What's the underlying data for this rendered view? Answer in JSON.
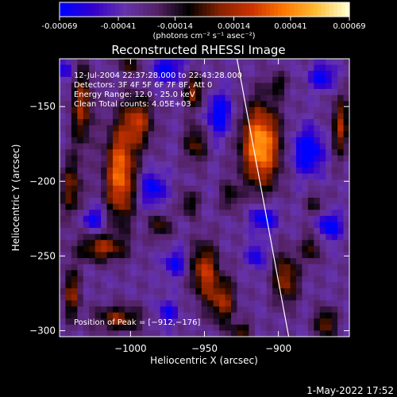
{
  "chart_data": {
    "type": "heatmap",
    "title": "Reconstructed RHESSI Image",
    "xlabel": "Heliocentric X (arcsec)",
    "ylabel": "Heliocentric Y (arcsec)",
    "xlim": [
      -1048,
      -852
    ],
    "ylim": [
      -304,
      -118
    ],
    "x_ticks": [
      -1000,
      -950,
      -900
    ],
    "x_tick_labels": [
      "−1000",
      "−950",
      "−900"
    ],
    "y_ticks": [
      -150,
      -200,
      -250,
      -300
    ],
    "y_tick_labels": [
      "−150",
      "−200",
      "−250",
      "−300"
    ],
    "colorbar": {
      "min": -0.00069,
      "max": 0.00069,
      "tick_values": [
        -0.00069,
        -0.00041,
        -0.00014,
        0.00014,
        0.00041,
        0.00069
      ],
      "tick_labels": [
        "-0.00069",
        "-0.00041",
        "-0.00014",
        "0.00014",
        "0.00041",
        "0.00069"
      ],
      "units_label": "(photons cm⁻² s⁻¹ asec⁻²)"
    },
    "info_lines": [
      "12-Jul-2004 22:37:28.000 to 22:43:28.000",
      "Detectors: 3F 4F 5F 6F 7F 8F, Att 0",
      "Energy Range: 12.0 - 25.0 keV",
      "Clean     Total counts: 4.05E+03"
    ],
    "peak_label": "Position of Peak = [−912,−176]",
    "peak": {
      "x": -912,
      "y": -176
    },
    "limb_line": {
      "x_top": -928,
      "y_top": -118,
      "x_bottom": -893,
      "y_bottom": -304,
      "color": "#ffffff"
    },
    "colormap": [
      "#0000ff",
      "#3300cc",
      "#6633aa",
      "#552266",
      "#000000",
      "#882200",
      "#cc3300",
      "#ff7700",
      "#ffbb33",
      "#ffffcc"
    ],
    "grid": false,
    "sources": [
      {
        "x": -912,
        "y": -176,
        "sx": 9,
        "sy": 19,
        "amp": 1.0
      },
      {
        "x": -1007,
        "y": -195,
        "sx": 7,
        "sy": 22,
        "amp": 0.85
      },
      {
        "x": -995,
        "y": -160,
        "sx": 7,
        "sy": 12,
        "amp": 0.6
      },
      {
        "x": -1033,
        "y": -150,
        "sx": 5,
        "sy": 18,
        "amp": 0.55
      },
      {
        "x": -1040,
        "y": -205,
        "sx": 5,
        "sy": 14,
        "amp": 0.45
      },
      {
        "x": -957,
        "y": -140,
        "sx": 5,
        "sy": 8,
        "amp": 0.5
      },
      {
        "x": -956,
        "y": -175,
        "sx": 5,
        "sy": 9,
        "amp": 0.45
      },
      {
        "x": -960,
        "y": -215,
        "sx": 4,
        "sy": 6,
        "amp": 0.4
      },
      {
        "x": -933,
        "y": -210,
        "sx": 4,
        "sy": 7,
        "amp": 0.35
      },
      {
        "x": -950,
        "y": -260,
        "sx": 6,
        "sy": 13,
        "amp": 0.65
      },
      {
        "x": -938,
        "y": -280,
        "sx": 6,
        "sy": 11,
        "amp": 0.55
      },
      {
        "x": -1020,
        "y": -245,
        "sx": 11,
        "sy": 6,
        "amp": 0.55
      },
      {
        "x": -1040,
        "y": -275,
        "sx": 4,
        "sy": 12,
        "amp": 0.5
      },
      {
        "x": -1008,
        "y": -292,
        "sx": 11,
        "sy": 6,
        "amp": 0.5
      },
      {
        "x": -980,
        "y": -230,
        "sx": 5,
        "sy": 6,
        "amp": 0.4
      },
      {
        "x": -895,
        "y": -265,
        "sx": 6,
        "sy": 12,
        "amp": 0.55
      },
      {
        "x": -878,
        "y": -245,
        "sx": 4,
        "sy": 7,
        "amp": 0.4
      },
      {
        "x": -868,
        "y": -295,
        "sx": 5,
        "sy": 7,
        "amp": 0.5
      },
      {
        "x": -858,
        "y": -163,
        "sx": 4,
        "sy": 14,
        "amp": 0.55
      },
      {
        "x": -900,
        "y": -135,
        "sx": 5,
        "sy": 5,
        "amp": 0.3
      },
      {
        "x": -875,
        "y": -215,
        "sx": 4,
        "sy": 5,
        "amp": 0.3
      },
      {
        "x": -1000,
        "y": -122,
        "sx": 6,
        "sy": 4,
        "amp": 0.35
      },
      {
        "x": -925,
        "y": -300,
        "sx": 5,
        "sy": 4,
        "amp": 0.4
      },
      {
        "x": -975,
        "y": -125,
        "sx": 7,
        "sy": 7,
        "amp": -0.45
      },
      {
        "x": -940,
        "y": -155,
        "sx": 6,
        "sy": 10,
        "amp": -0.5
      },
      {
        "x": -880,
        "y": -180,
        "sx": 7,
        "sy": 10,
        "amp": -0.6
      },
      {
        "x": -870,
        "y": -130,
        "sx": 6,
        "sy": 6,
        "amp": -0.45
      },
      {
        "x": -985,
        "y": -205,
        "sx": 6,
        "sy": 8,
        "amp": -0.45
      },
      {
        "x": -1025,
        "y": -225,
        "sx": 6,
        "sy": 5,
        "amp": -0.4
      },
      {
        "x": -910,
        "y": -225,
        "sx": 6,
        "sy": 6,
        "amp": -0.5
      },
      {
        "x": -865,
        "y": -230,
        "sx": 5,
        "sy": 6,
        "amp": -0.55
      },
      {
        "x": -970,
        "y": -255,
        "sx": 5,
        "sy": 6,
        "amp": -0.4
      },
      {
        "x": -1045,
        "y": -125,
        "sx": 4,
        "sy": 6,
        "amp": -0.35
      },
      {
        "x": -915,
        "y": -250,
        "sx": 4,
        "sy": 6,
        "amp": -0.4
      },
      {
        "x": -975,
        "y": -288,
        "sx": 5,
        "sy": 6,
        "amp": -0.35
      }
    ]
  },
  "footer": {
    "timestamp": "1-May-2022 17:52"
  }
}
